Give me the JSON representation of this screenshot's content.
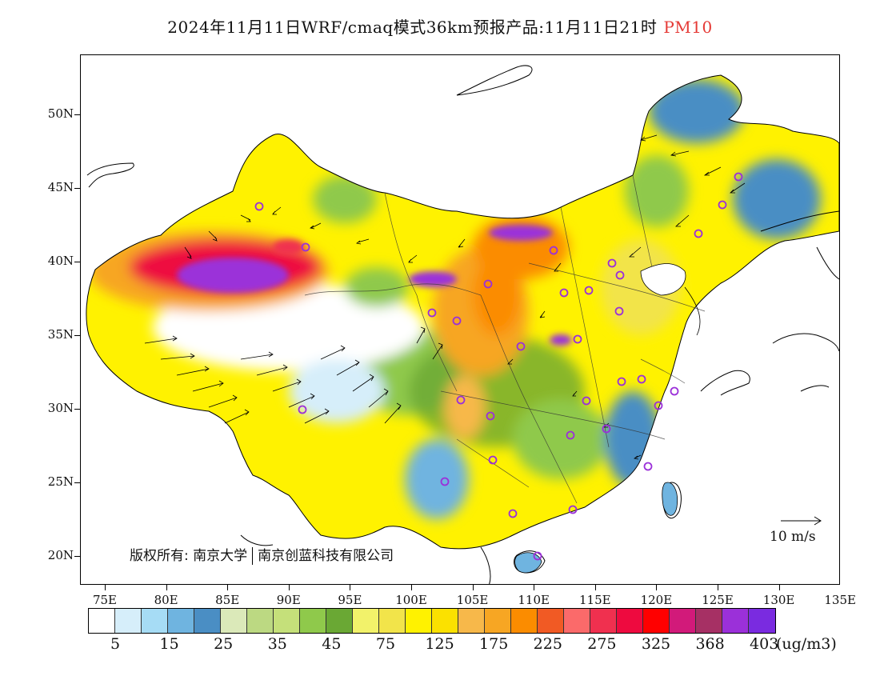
{
  "title": {
    "main": "2024年11月11日WRF/cmaq模式36km预报产品:11月11日21时",
    "variable": "PM10",
    "variable_color": "#e53935"
  },
  "map": {
    "lat_labels": [
      "50N",
      "45N",
      "40N",
      "35N",
      "30N",
      "25N",
      "20N"
    ],
    "lon_labels": [
      "75E",
      "80E",
      "85E",
      "90E",
      "95E",
      "100E",
      "105E",
      "110E",
      "115E",
      "120E",
      "125E",
      "130E",
      "135E"
    ],
    "copyright_prefix": "版权所有:",
    "copyright_org1": "南京大学",
    "copyright_org2": "南京创蓝科技有限公司",
    "wind_reference": "10 m/s",
    "station_marker_color": "#9b30d9"
  },
  "colorbar": {
    "colors": [
      "#ffffff",
      "#d6eefa",
      "#a6dcf5",
      "#6fb4e0",
      "#4a8ec4",
      "#dbe9b9",
      "#bcd982",
      "#c5e07a",
      "#8fc94b",
      "#6aa834",
      "#f2f26a",
      "#f2e44a",
      "#fff200",
      "#fbe100",
      "#f7b84a",
      "#f7a623",
      "#fb8c00",
      "#f15a24",
      "#fb6a6a",
      "#f0304f",
      "#ee0a3f",
      "#ff0000",
      "#d21a7a",
      "#a63064",
      "#9b30d9",
      "#7a2be0"
    ],
    "labels": [
      "5",
      "15",
      "25",
      "35",
      "45",
      "75",
      "125",
      "175",
      "225",
      "275",
      "325",
      "368",
      "403"
    ],
    "unit": "(ug/m3)"
  }
}
